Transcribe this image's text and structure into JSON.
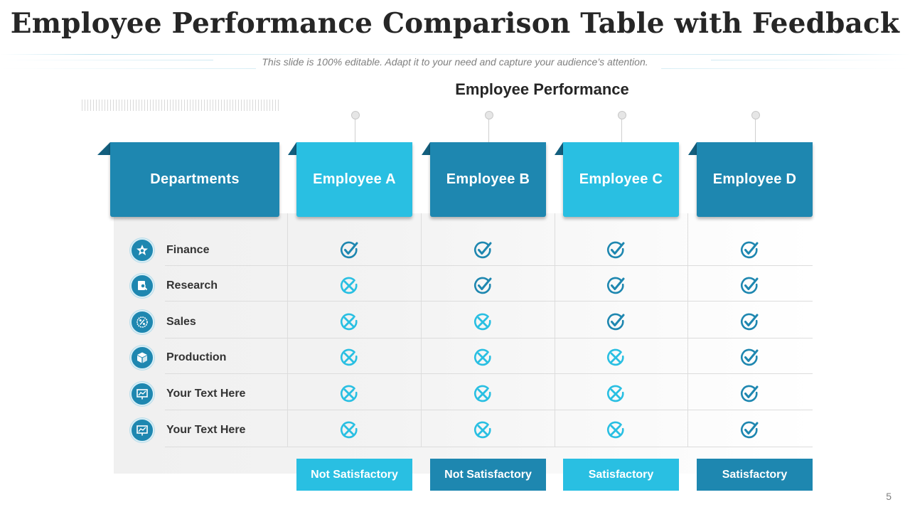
{
  "title": "Employee Performance Comparison Table with Feedback",
  "subtitle": "This slide is 100% editable. Adapt it to your need and capture your audience’s attention.",
  "table": {
    "heading": "Employee Performance",
    "departments_header": "Departments",
    "employees": [
      {
        "name": "Employee A",
        "style": "light",
        "feedback": "Not Satisfactory"
      },
      {
        "name": "Employee B",
        "style": "dark",
        "feedback": "Not Satisfactory"
      },
      {
        "name": "Employee C",
        "style": "light",
        "feedback": "Satisfactory"
      },
      {
        "name": "Employee D",
        "style": "dark",
        "feedback": "Satisfactory"
      }
    ],
    "rows": [
      {
        "department": "Finance",
        "icon": "star-badge-icon",
        "marks": [
          "check",
          "check",
          "check",
          "check"
        ]
      },
      {
        "department": "Research",
        "icon": "research-document-icon",
        "marks": [
          "cross",
          "check",
          "check",
          "check"
        ]
      },
      {
        "department": "Sales",
        "icon": "percentage-tag-icon",
        "marks": [
          "cross",
          "cross",
          "check",
          "check"
        ]
      },
      {
        "department": "Production",
        "icon": "box-icon",
        "marks": [
          "cross",
          "cross",
          "cross",
          "check"
        ]
      },
      {
        "department": "Your Text Here",
        "icon": "presentation-board-icon",
        "marks": [
          "cross",
          "cross",
          "cross",
          "check"
        ]
      },
      {
        "department": "Your Text Here",
        "icon": "presentation-board-icon",
        "marks": [
          "cross",
          "cross",
          "cross",
          "check"
        ]
      }
    ]
  },
  "page_number": "5",
  "colors": {
    "dark_blue": "#1e87b0",
    "light_blue": "#29bfe2",
    "check": "#1e87b0",
    "cross": "#29bfe2"
  }
}
